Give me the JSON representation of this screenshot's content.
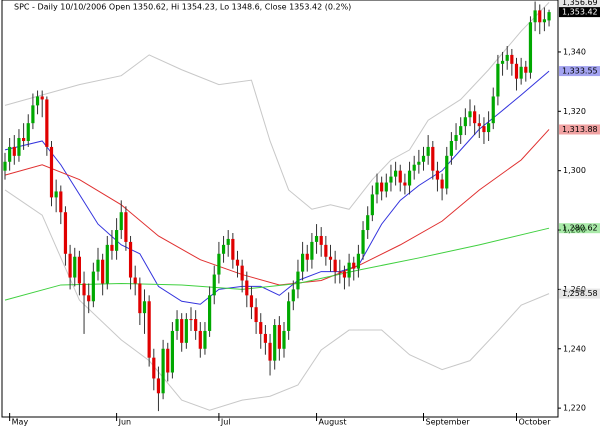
{
  "chart_data": {
    "type": "candlestick",
    "title": "SPC - Daily 10/10/2006 Open 1350.62, Hi 1354.23, Lo 1348.6, Close 1353.42 (0.2%)",
    "categories": [
      null,
      "May",
      null,
      null,
      null,
      null,
      null,
      null,
      null,
      null,
      null,
      null,
      null,
      null,
      null,
      null,
      null,
      null,
      null,
      null,
      null,
      null,
      null,
      null,
      "Jun",
      null,
      null,
      null,
      null,
      null,
      null,
      null,
      null,
      null,
      null,
      null,
      null,
      null,
      null,
      null,
      null,
      null,
      null,
      null,
      null,
      null,
      "Jul",
      null,
      null,
      null,
      null,
      null,
      null,
      null,
      null,
      null,
      null,
      null,
      null,
      null,
      null,
      null,
      null,
      null,
      null,
      null,
      null,
      "August",
      null,
      null,
      null,
      null,
      null,
      null,
      null,
      null,
      null,
      null,
      null,
      null,
      null,
      null,
      null,
      null,
      null,
      null,
      null,
      null,
      null,
      null,
      "September",
      null,
      null,
      null,
      null,
      null,
      null,
      null,
      null,
      null,
      null,
      null,
      null,
      null,
      null,
      null,
      null,
      null,
      null,
      null,
      "October",
      null,
      null,
      null,
      null,
      null,
      null,
      null
    ],
    "open": [
      1300,
      1303,
      1308,
      1305,
      1311,
      1310,
      1316,
      1322,
      1325,
      1324,
      1308,
      1291,
      1293,
      1286,
      1272,
      1264,
      1271,
      1262,
      1258,
      1256,
      1266,
      1270,
      1262,
      1275,
      1273,
      1280,
      1286,
      1276,
      1264,
      1262,
      1252,
      1256,
      1237,
      1230,
      1225,
      1240,
      1232,
      1246,
      1250,
      1242,
      1250,
      1250,
      1246,
      1240,
      1246,
      1258,
      1265,
      1272,
      1275,
      1277,
      1270,
      1268,
      1263,
      1258,
      1254,
      1249,
      1245,
      1242,
      1236,
      1248,
      1240,
      1246,
      1256,
      1260,
      1266,
      1272,
      1270,
      1276,
      1278,
      1275,
      1271,
      1270,
      1266,
      1266,
      1264,
      1269,
      1267,
      1272,
      1280,
      1285,
      1292,
      1296,
      1293,
      1296,
      1298,
      1300,
      1296,
      1295,
      1300,
      1302,
      1303,
      1305,
      1308,
      1300,
      1297,
      1294,
      1305,
      1310,
      1312,
      1315,
      1318,
      1320,
      1316,
      1315,
      1313,
      1316,
      1325,
      1336,
      1337,
      1339,
      1336,
      1331,
      1335,
      1333,
      1350,
      1354,
      1350,
      1350.62
    ],
    "high": [
      1306,
      1311,
      1312,
      1314,
      1316,
      1319,
      1326,
      1327,
      1327,
      1325,
      1310,
      1297,
      1295,
      1288,
      1275,
      1274,
      1273,
      1266,
      1262,
      1269,
      1274,
      1272,
      1278,
      1280,
      1284,
      1290,
      1288,
      1278,
      1268,
      1264,
      1260,
      1258,
      1240,
      1234,
      1243,
      1242,
      1249,
      1253,
      1252,
      1252,
      1254,
      1253,
      1249,
      1249,
      1261,
      1268,
      1276,
      1278,
      1280,
      1279,
      1273,
      1270,
      1266,
      1261,
      1257,
      1252,
      1248,
      1245,
      1250,
      1251,
      1249,
      1259,
      1263,
      1270,
      1276,
      1275,
      1279,
      1282,
      1281,
      1278,
      1275,
      1273,
      1270,
      1268,
      1272,
      1271,
      1275,
      1283,
      1288,
      1295,
      1299,
      1298,
      1299,
      1302,
      1303,
      1302,
      1299,
      1303,
      1305,
      1307,
      1308,
      1312,
      1310,
      1303,
      1299,
      1308,
      1313,
      1316,
      1318,
      1321,
      1324,
      1322,
      1319,
      1318,
      1320,
      1328,
      1339,
      1340,
      1342,
      1341,
      1338,
      1338,
      1337,
      1352,
      1357,
      1356,
      1355,
      1354.23
    ],
    "low": [
      1297,
      1300,
      1302,
      1303,
      1307,
      1308,
      1314,
      1319,
      1318,
      1305,
      1288,
      1286,
      1282,
      1268,
      1260,
      1261,
      1258,
      1245,
      1252,
      1254,
      1263,
      1258,
      1260,
      1270,
      1270,
      1277,
      1273,
      1260,
      1258,
      1248,
      1245,
      1234,
      1226,
      1219,
      1223,
      1229,
      1230,
      1243,
      1239,
      1240,
      1246,
      1243,
      1237,
      1238,
      1244,
      1255,
      1262,
      1269,
      1271,
      1267,
      1264,
      1259,
      1254,
      1250,
      1245,
      1240,
      1238,
      1231,
      1233,
      1236,
      1237,
      1243,
      1253,
      1257,
      1263,
      1266,
      1267,
      1272,
      1271,
      1268,
      1266,
      1262,
      1262,
      1260,
      1261,
      1263,
      1264,
      1270,
      1277,
      1283,
      1289,
      1290,
      1291,
      1293,
      1295,
      1293,
      1292,
      1292,
      1297,
      1299,
      1300,
      1302,
      1297,
      1293,
      1290,
      1292,
      1302,
      1307,
      1309,
      1312,
      1315,
      1312,
      1311,
      1309,
      1310,
      1314,
      1322,
      1332,
      1334,
      1332,
      1327,
      1329,
      1330,
      1331,
      1347,
      1346,
      1347,
      1348.6
    ],
    "close": [
      1303,
      1308,
      1305,
      1311,
      1310,
      1316,
      1322,
      1325,
      1324,
      1308,
      1291,
      1293,
      1286,
      1272,
      1264,
      1271,
      1262,
      1258,
      1256,
      1266,
      1270,
      1262,
      1275,
      1273,
      1280,
      1286,
      1276,
      1264,
      1262,
      1252,
      1256,
      1237,
      1230,
      1225,
      1240,
      1232,
      1246,
      1250,
      1242,
      1250,
      1250,
      1246,
      1240,
      1246,
      1258,
      1265,
      1272,
      1275,
      1277,
      1270,
      1268,
      1263,
      1258,
      1254,
      1249,
      1245,
      1242,
      1236,
      1248,
      1240,
      1246,
      1256,
      1260,
      1266,
      1272,
      1270,
      1276,
      1278,
      1275,
      1271,
      1270,
      1266,
      1266,
      1264,
      1269,
      1267,
      1272,
      1280,
      1285,
      1292,
      1296,
      1293,
      1296,
      1298,
      1300,
      1296,
      1295,
      1300,
      1302,
      1303,
      1305,
      1308,
      1300,
      1297,
      1294,
      1305,
      1310,
      1312,
      1315,
      1318,
      1320,
      1316,
      1315,
      1313,
      1316,
      1325,
      1336,
      1337,
      1339,
      1336,
      1331,
      1335,
      1333,
      1350,
      1354,
      1350,
      1351,
      1353.42
    ],
    "up_color": "#00a800",
    "down_color": "#e00000",
    "close_label": {
      "value": 1353.42,
      "label": "1,353.42"
    },
    "overlays": [
      {
        "color": "#c8c8c8",
        "x": [
          0,
          8,
          16,
          25,
          31,
          38,
          46,
          53,
          57,
          61,
          66,
          70,
          74,
          79,
          83,
          87,
          91,
          98,
          104,
          111,
          117
        ],
        "values": [
          1322,
          1325.5,
          1329,
          1332,
          1339,
          1334,
          1329,
          1330.5,
          1310,
          1293.5,
          1287,
          1288.5,
          1287,
          1297,
          1303.6,
          1307,
          1317,
          1324,
          1334,
          1347,
          1356.69
        ],
        "last_label": {
          "value": 1356.69,
          "label": "1,356.69"
        }
      },
      {
        "color": "#c8c8c8",
        "x": [
          0,
          8,
          16,
          25,
          31,
          38,
          44,
          51,
          57,
          63,
          68,
          74,
          81,
          87,
          94,
          100,
          106,
          111,
          117
        ],
        "values": [
          1293.5,
          1285,
          1256.4,
          1243,
          1236,
          1222.7,
          1219.3,
          1222.7,
          1224,
          1227.8,
          1239.6,
          1246.3,
          1246.3,
          1238,
          1233,
          1236,
          1246,
          1254.7,
          1258.58
        ],
        "last_label": {
          "value": 1258.58,
          "label": "1,258.58"
        }
      },
      {
        "color": "#3333dd",
        "x": [
          0,
          8,
          12,
          16,
          20,
          25,
          29,
          33,
          38,
          42,
          46,
          51,
          55,
          59,
          63,
          68,
          72,
          76,
          81,
          85,
          89,
          94,
          98,
          102,
          106,
          111,
          117
        ],
        "values": [
          1307,
          1310,
          1302,
          1292,
          1282,
          1275,
          1272,
          1261,
          1256,
          1255,
          1260,
          1261,
          1261,
          1258,
          1263,
          1266,
          1266,
          1268,
          1282,
          1290,
          1295,
          1300,
          1307,
          1314,
          1319,
          1325.5,
          1333.55
        ],
        "last_label": {
          "value": 1333.55,
          "label": "1,333.55"
        }
      },
      {
        "color": "#e03030",
        "x": [
          0,
          8,
          16,
          25,
          33,
          42,
          51,
          59,
          68,
          76,
          85,
          94,
          102,
          111,
          117
        ],
        "values": [
          1298.5,
          1302,
          1297,
          1288.5,
          1278,
          1270,
          1265,
          1261.5,
          1263,
          1268,
          1275,
          1283,
          1293.5,
          1303.6,
          1313.88
        ],
        "last_label": {
          "value": 1313.88,
          "label": "1,313.88"
        }
      },
      {
        "color": "#40d040",
        "x": [
          0,
          12,
          25,
          38,
          51,
          63,
          76,
          89,
          102,
          117
        ],
        "values": [
          1256.4,
          1261.5,
          1262,
          1261.5,
          1260,
          1262,
          1266.5,
          1270.6,
          1275,
          1280.62
        ],
        "last_label": {
          "value": 1280.62,
          "label": "1,280.62"
        }
      }
    ],
    "ylim": [
      1216,
      1357.5
    ],
    "yticks": [
      {
        "value": 1220,
        "label": "1,220"
      },
      {
        "value": 1240,
        "label": "1,240"
      },
      {
        "value": 1260,
        "label": "1,260"
      },
      {
        "value": 1280,
        "label": "1,280"
      },
      {
        "value": 1300,
        "label": "1,300"
      },
      {
        "value": 1320,
        "label": "1,320"
      },
      {
        "value": 1340,
        "label": "1,340"
      }
    ]
  }
}
